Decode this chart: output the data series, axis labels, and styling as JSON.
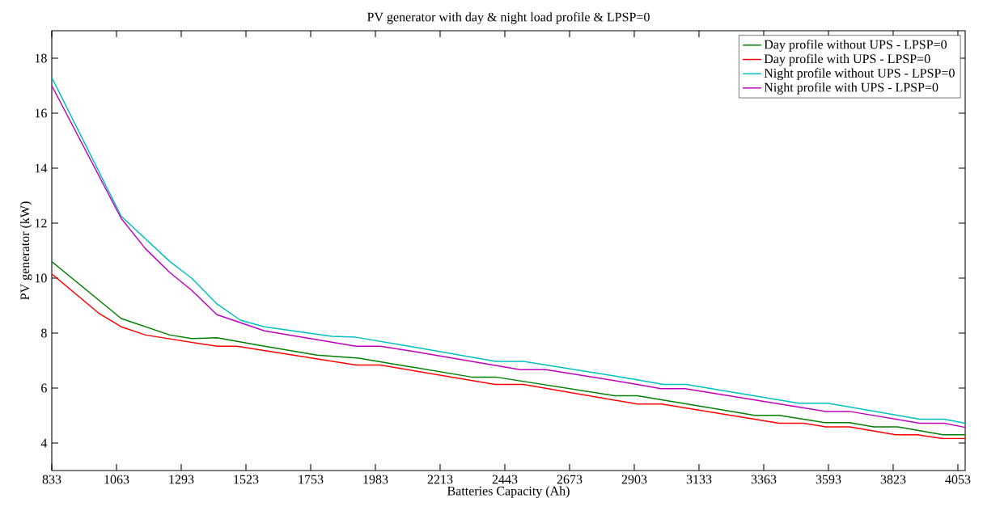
{
  "chart_data": {
    "type": "line",
    "title": "PV generator with day & night load profile & LPSP=0",
    "xlabel": "Batteries Capacity (Ah)",
    "ylabel": "PV generator (kW)",
    "xlim": [
      833,
      4079
    ],
    "xticks": [
      833,
      1063,
      1293,
      1523,
      1753,
      1983,
      2213,
      2443,
      2673,
      2903,
      3133,
      3363,
      3593,
      3823,
      4053
    ],
    "ylim": [
      3,
      19
    ],
    "yticks": [
      4,
      6,
      8,
      10,
      12,
      14,
      16,
      18
    ],
    "grid": false,
    "legend": "top right",
    "marker": "none",
    "line_style": "solid",
    "series": [
      {
        "name": "Day profile without UPS - LPSP=0",
        "color": "#008000",
        "x": [
          833,
          1080,
          1253,
          1330,
          1420,
          1589,
          1776,
          1924,
          2325,
          2411,
          2834,
          2914,
          3331,
          3418,
          3582,
          3668,
          3754,
          3840,
          4000,
          4079
        ],
        "values": [
          10.6,
          8.53,
          7.93,
          7.8,
          7.83,
          7.52,
          7.2,
          7.09,
          6.4,
          6.4,
          5.72,
          5.72,
          5.01,
          5.01,
          4.74,
          4.74,
          4.59,
          4.59,
          4.3,
          4.3
        ]
      },
      {
        "name": "Day profile with UPS - LPSP=0",
        "color": "#ff0000",
        "x": [
          833,
          1003,
          1080,
          1166,
          1420,
          1491,
          1914,
          2000,
          2408,
          2509,
          2914,
          3000,
          3418,
          3504,
          3582,
          3668,
          3832,
          3908,
          4000,
          4079
        ],
        "values": [
          10.15,
          8.7,
          8.23,
          7.93,
          7.52,
          7.52,
          6.84,
          6.84,
          6.13,
          6.13,
          5.42,
          5.42,
          4.72,
          4.72,
          4.59,
          4.59,
          4.3,
          4.3,
          4.16,
          4.16
        ]
      },
      {
        "name": "Night profile without UPS - LPSP=0",
        "color": "#00bfbf",
        "x": [
          833,
          1080,
          1253,
          1330,
          1420,
          1503,
          1589,
          1828,
          1914,
          2115,
          2411,
          2509,
          2892,
          3007,
          3087,
          3487,
          3590,
          3918,
          4004,
          4079
        ],
        "values": [
          17.3,
          12.25,
          10.6,
          10.0,
          9.06,
          8.47,
          8.23,
          7.88,
          7.85,
          7.5,
          6.97,
          6.97,
          6.34,
          6.13,
          6.13,
          5.45,
          5.45,
          4.87,
          4.87,
          4.72
        ]
      },
      {
        "name": "Night profile with UPS - LPSP=0",
        "color": "#bf00bf",
        "x": [
          833,
          1080,
          1166,
          1253,
          1330,
          1420,
          1589,
          1914,
          2000,
          2115,
          2498,
          2590,
          2892,
          2998,
          3084,
          3582,
          3668,
          3918,
          4004,
          4079
        ],
        "values": [
          17.0,
          12.17,
          11.07,
          10.2,
          9.56,
          8.67,
          8.08,
          7.52,
          7.52,
          7.34,
          6.67,
          6.67,
          6.17,
          5.98,
          5.98,
          5.15,
          5.15,
          4.72,
          4.72,
          4.57
        ]
      }
    ]
  }
}
